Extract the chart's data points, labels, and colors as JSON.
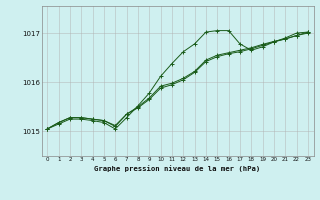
{
  "title": "Graphe pression niveau de la mer (hPa)",
  "bg_color": "#cff0f0",
  "grid_color": "#b0b0b0",
  "line_color": "#1a5c1a",
  "ylim": [
    1014.5,
    1017.55
  ],
  "yticks": [
    1015,
    1016,
    1017
  ],
  "xlim": [
    -0.5,
    23.5
  ],
  "xticks": [
    0,
    1,
    2,
    3,
    4,
    5,
    6,
    7,
    8,
    9,
    10,
    11,
    12,
    13,
    14,
    15,
    16,
    17,
    18,
    19,
    20,
    21,
    22,
    23
  ],
  "series1_x": [
    0,
    1,
    2,
    3,
    4,
    5,
    6,
    7,
    8,
    9,
    10,
    11,
    12,
    13,
    14,
    15,
    16,
    17,
    18,
    19,
    20,
    21,
    22,
    23
  ],
  "series1_y": [
    1015.05,
    1015.18,
    1015.28,
    1015.28,
    1015.25,
    1015.22,
    1015.1,
    1015.35,
    1015.48,
    1015.65,
    1015.88,
    1015.95,
    1016.05,
    1016.2,
    1016.42,
    1016.52,
    1016.58,
    1016.62,
    1016.68,
    1016.75,
    1016.82,
    1016.88,
    1016.95,
    1017.0
  ],
  "series2_x": [
    0,
    1,
    2,
    3,
    4,
    5,
    6,
    7,
    8,
    9,
    10,
    11,
    12,
    13,
    14,
    15,
    16,
    17,
    18,
    19,
    20,
    21,
    22,
    23
  ],
  "series2_y": [
    1015.05,
    1015.18,
    1015.28,
    1015.28,
    1015.25,
    1015.22,
    1015.12,
    1015.35,
    1015.5,
    1015.68,
    1015.92,
    1015.98,
    1016.08,
    1016.22,
    1016.45,
    1016.55,
    1016.6,
    1016.65,
    1016.7,
    1016.77,
    1016.83,
    1016.88,
    1016.95,
    1017.02
  ],
  "series3_x": [
    0,
    1,
    2,
    3,
    4,
    5,
    6,
    7,
    8,
    9,
    10,
    11,
    12,
    13,
    14,
    15,
    16,
    17,
    18,
    19,
    20,
    21,
    22,
    23
  ],
  "series3_y": [
    1015.05,
    1015.15,
    1015.25,
    1015.25,
    1015.22,
    1015.18,
    1015.05,
    1015.28,
    1015.52,
    1015.78,
    1016.12,
    1016.38,
    1016.62,
    1016.78,
    1017.02,
    1017.05,
    1017.05,
    1016.78,
    1016.65,
    1016.72,
    1016.82,
    1016.9,
    1017.0,
    1017.02
  ]
}
